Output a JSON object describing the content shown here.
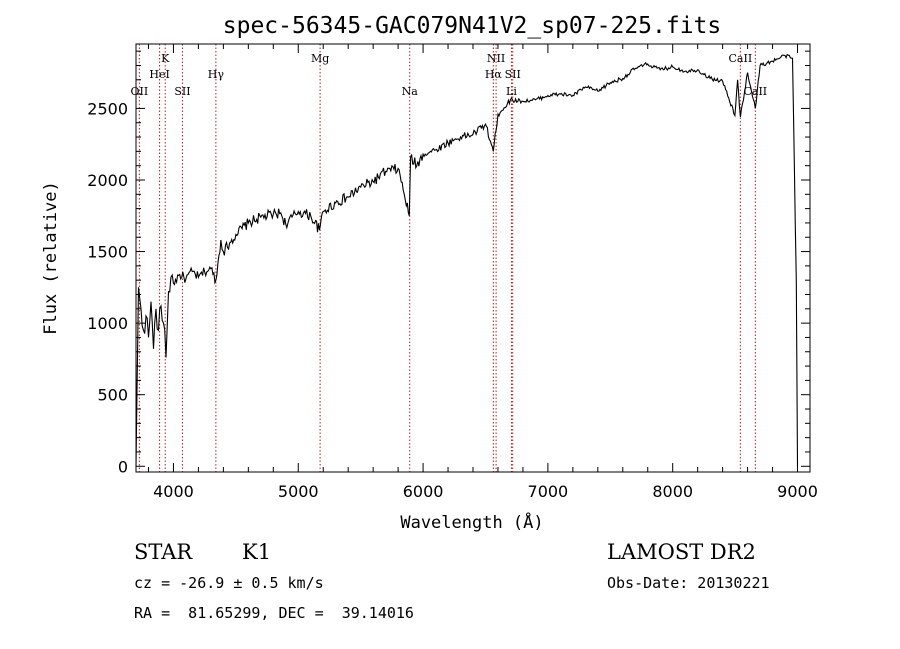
{
  "chart_data": {
    "type": "line",
    "title": "spec-56345-GAC079N41V2_sp07-225.fits",
    "xlabel": "Wavelength (Å)",
    "ylabel": "Flux (relative)",
    "xlim": [
      3700,
      9100
    ],
    "ylim": [
      -40,
      2950
    ],
    "xticks": [
      4000,
      5000,
      6000,
      7000,
      8000,
      9000
    ],
    "yticks": [
      0,
      500,
      1000,
      1500,
      2000,
      2500
    ],
    "series": [
      {
        "name": "flux",
        "x": [
          3700,
          3720,
          3740,
          3760,
          3780,
          3800,
          3820,
          3840,
          3860,
          3880,
          3900,
          3920,
          3940,
          3960,
          3980,
          4000,
          4050,
          4100,
          4150,
          4200,
          4250,
          4300,
          4340,
          4380,
          4400,
          4450,
          4500,
          4600,
          4700,
          4800,
          4860,
          4900,
          5000,
          5100,
          5170,
          5200,
          5300,
          5400,
          5500,
          5600,
          5700,
          5800,
          5890,
          5900,
          5950,
          6000,
          6100,
          6200,
          6300,
          6400,
          6500,
          6563,
          6600,
          6700,
          6800,
          6900,
          7000,
          7100,
          7200,
          7300,
          7400,
          7500,
          7600,
          7700,
          7800,
          7900,
          8000,
          8100,
          8200,
          8300,
          8400,
          8498,
          8520,
          8542,
          8600,
          8662,
          8700,
          8800,
          8900,
          8960,
          8990,
          9000
        ],
        "y": [
          0,
          1250,
          1100,
          950,
          1050,
          900,
          1150,
          820,
          1100,
          950,
          1120,
          1000,
          760,
          1220,
          1320,
          1280,
          1340,
          1310,
          1360,
          1320,
          1360,
          1380,
          1300,
          1580,
          1500,
          1560,
          1620,
          1700,
          1740,
          1760,
          1770,
          1690,
          1780,
          1750,
          1650,
          1780,
          1840,
          1880,
          1950,
          1990,
          2060,
          2080,
          1750,
          2160,
          2100,
          2180,
          2210,
          2260,
          2300,
          2320,
          2390,
          2200,
          2460,
          2560,
          2550,
          2560,
          2590,
          2600,
          2590,
          2650,
          2620,
          2680,
          2710,
          2780,
          2810,
          2770,
          2790,
          2760,
          2770,
          2710,
          2690,
          2450,
          2700,
          2440,
          2750,
          2500,
          2800,
          2830,
          2870,
          2850,
          1300,
          0
        ]
      }
    ],
    "spectral_lines": [
      {
        "label": "OII",
        "wavelength": 3727,
        "row": 3
      },
      {
        "label": "K",
        "wavelength": 3934,
        "row": 1
      },
      {
        "label": "HeI",
        "wavelength": 3889,
        "row": 2
      },
      {
        "label": "SII",
        "wavelength": 4072,
        "row": 3
      },
      {
        "label": "Hγ",
        "wavelength": 4340,
        "row": 2
      },
      {
        "label": "Mg",
        "wavelength": 5175,
        "row": 1
      },
      {
        "label": "Na",
        "wavelength": 5893,
        "row": 3
      },
      {
        "label": "NII",
        "wavelength": 6585,
        "row": 1
      },
      {
        "label": "Hα",
        "wavelength": 6563,
        "row": 2
      },
      {
        "label": "SII",
        "wavelength": 6718,
        "row": 2
      },
      {
        "label": "Li",
        "wavelength": 6708,
        "row": 3
      },
      {
        "label": "CaII",
        "wavelength": 8542,
        "row": 1
      },
      {
        "label": "CaII",
        "wavelength": 8662,
        "row": 3
      }
    ]
  },
  "info": {
    "object_type": "STAR",
    "subclass": "K1",
    "survey": "LAMOST DR2",
    "redshift": "cz = -26.9 ± 0.5 km/s",
    "obs_date": "Obs-Date: 20130221",
    "coords": "RA =  81.65299, DEC =  39.14016"
  },
  "colors": {
    "axis": "#000000",
    "spectrum": "#000000",
    "line_markers": "#b22222"
  }
}
